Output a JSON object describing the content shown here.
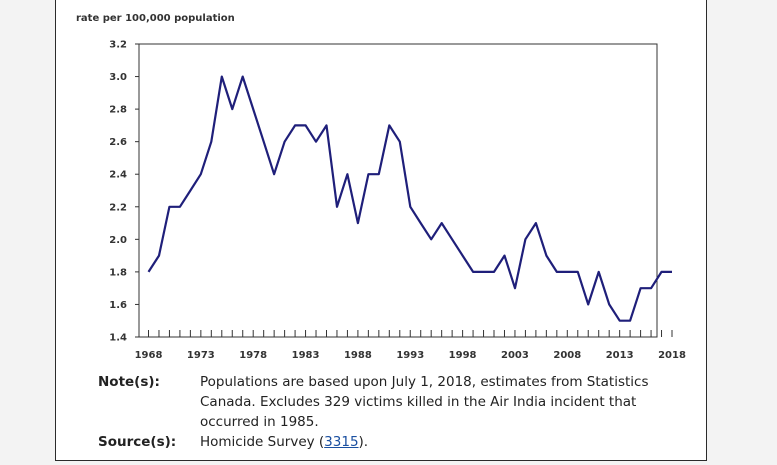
{
  "chart_data": {
    "type": "line",
    "ylabel": "rate per 100,000 population",
    "ylim": [
      1.4,
      3.2
    ],
    "yticks": [
      "1.4",
      "1.6",
      "1.8",
      "2.0",
      "2.2",
      "2.4",
      "2.6",
      "2.8",
      "3.0",
      "3.2"
    ],
    "xlim": [
      1968,
      2018
    ],
    "xticks": [
      "1968",
      "1973",
      "1978",
      "1983",
      "1988",
      "1993",
      "1998",
      "2003",
      "2008",
      "2013",
      "2018"
    ],
    "grid": false,
    "line_color": "#1f1f7a",
    "series": [
      {
        "x": [
          1968,
          1969,
          1970,
          1971,
          1972,
          1973,
          1974,
          1975,
          1976,
          1977,
          1978,
          1979,
          1980,
          1981,
          1982,
          1983,
          1984,
          1985,
          1986,
          1987,
          1988,
          1989,
          1990,
          1991,
          1992,
          1993,
          1994,
          1995,
          1996,
          1997,
          1998,
          1999,
          2000,
          2001,
          2002,
          2003,
          2004,
          2005,
          2006,
          2007,
          2008,
          2009,
          2010,
          2011,
          2012,
          2013,
          2014,
          2015,
          2016,
          2017,
          2018
        ],
        "y": [
          1.8,
          1.9,
          2.2,
          2.2,
          2.3,
          2.4,
          2.6,
          3.0,
          2.8,
          3.0,
          2.8,
          2.6,
          2.4,
          2.6,
          2.7,
          2.7,
          2.6,
          2.7,
          2.2,
          2.4,
          2.1,
          2.4,
          2.4,
          2.7,
          2.6,
          2.2,
          2.1,
          2.0,
          2.1,
          2.0,
          1.9,
          1.8,
          1.8,
          1.8,
          1.9,
          1.7,
          2.0,
          2.1,
          1.9,
          1.8,
          1.8,
          1.8,
          1.6,
          1.8,
          1.6,
          1.5,
          1.5,
          1.7,
          1.7,
          1.8,
          1.8
        ]
      }
    ]
  },
  "notes": {
    "note_label": "Note(s):",
    "note_text": "Populations are based upon July 1, 2018, estimates from Statistics Canada. Excludes 329 victims killed in the Air India incident that occurred in 1985.",
    "source_label": "Source(s):",
    "source_prefix": "Homicide Survey (",
    "source_link": "3315",
    "source_suffix": ")."
  }
}
